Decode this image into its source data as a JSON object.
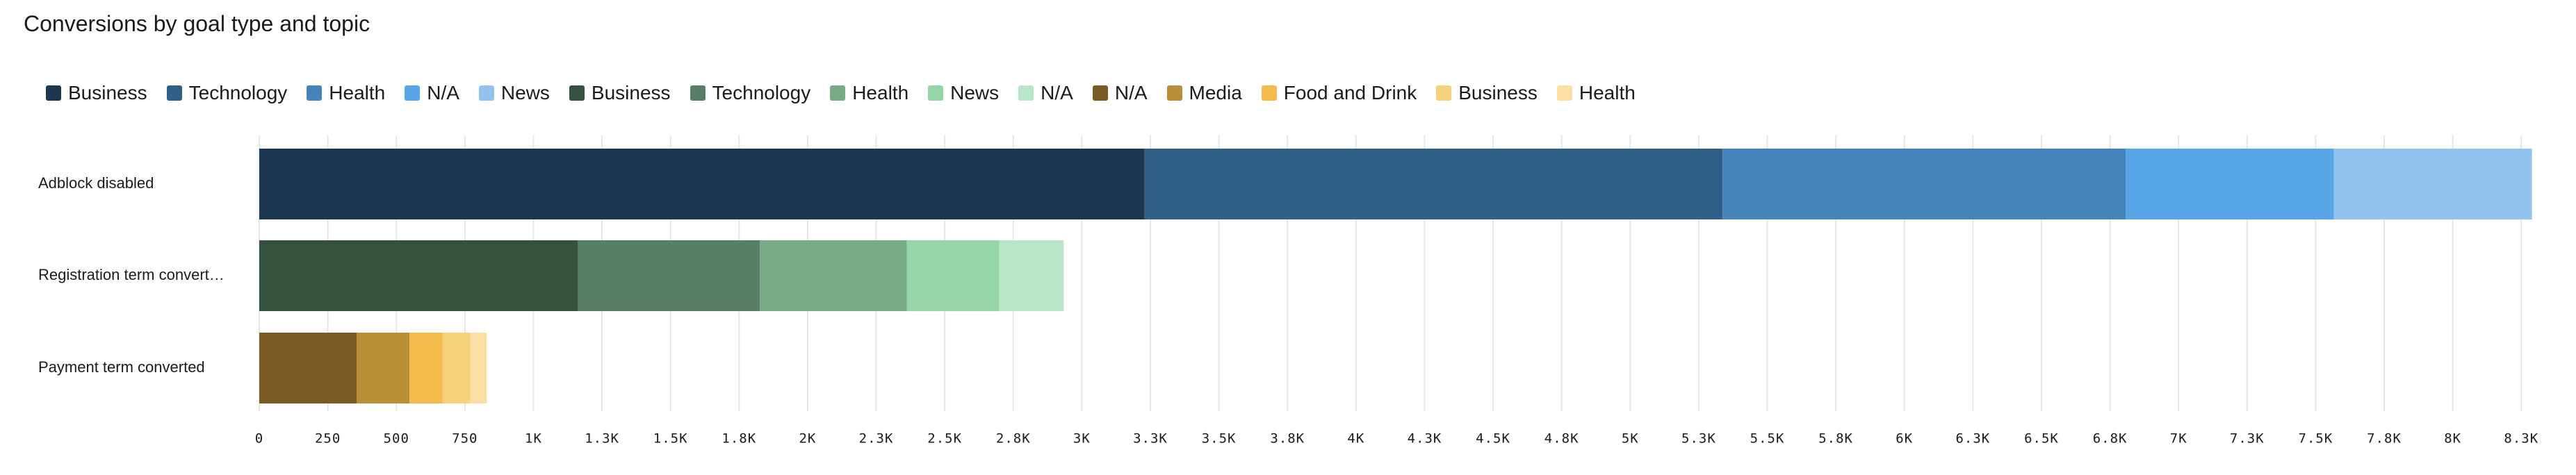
{
  "chart_data": {
    "type": "stacked-bar-horizontal",
    "title": "Conversions by goal type and topic",
    "categories": [
      "Adblock disabled",
      "Registration term convert…",
      "Payment term converted"
    ],
    "series": [
      {
        "name": "Business",
        "color": "#1d3750",
        "values": [
          3229,
          null,
          null
        ]
      },
      {
        "name": "Technology",
        "color": "#305f87",
        "values": [
          2108,
          null,
          null
        ]
      },
      {
        "name": "Health",
        "color": "#4683bb",
        "values": [
          1470,
          null,
          null
        ]
      },
      {
        "name": "N/A",
        "color": "#58a6e8",
        "values": [
          759,
          null,
          null
        ]
      },
      {
        "name": "News",
        "color": "#92c4ef",
        "values": [
          723,
          null,
          null
        ]
      },
      {
        "name": "Business",
        "color": "#355241",
        "values": [
          null,
          1163,
          null
        ]
      },
      {
        "name": "Technology",
        "color": "#577f65",
        "values": [
          null,
          663,
          null
        ]
      },
      {
        "name": "Health",
        "color": "#78aa86",
        "values": [
          null,
          536,
          null
        ]
      },
      {
        "name": "News",
        "color": "#96d5a8",
        "values": [
          null,
          337,
          null
        ]
      },
      {
        "name": "N/A",
        "color": "#b8e6c8",
        "values": [
          null,
          235,
          null
        ]
      },
      {
        "name": "N/A",
        "color": "#7a5b23",
        "values": [
          null,
          null,
          355
        ]
      },
      {
        "name": "Media",
        "color": "#b78f35",
        "values": [
          null,
          null,
          193
        ]
      },
      {
        "name": "Food and Drink",
        "color": "#f4bb4a",
        "values": [
          null,
          null,
          120
        ]
      },
      {
        "name": "Business",
        "color": "#f6d27d",
        "values": [
          null,
          null,
          102
        ]
      },
      {
        "name": "Health",
        "color": "#fadea3",
        "values": [
          null,
          null,
          60
        ]
      }
    ],
    "xlim": [
      0,
      8300
    ],
    "xticks": [
      0,
      250,
      500,
      750,
      {
        "value": 1000,
        "label": "1K"
      },
      {
        "value": 1250,
        "label": "1.3K"
      },
      {
        "value": 1500,
        "label": "1.5K"
      },
      {
        "value": 1750,
        "label": "1.8K"
      },
      {
        "value": 2000,
        "label": "2K"
      },
      {
        "value": 2250,
        "label": "2.3K"
      },
      {
        "value": 2500,
        "label": "2.5K"
      },
      {
        "value": 2750,
        "label": "2.8K"
      },
      {
        "value": 3000,
        "label": "3K"
      },
      {
        "value": 3250,
        "label": "3.3K"
      },
      {
        "value": 3500,
        "label": "3.5K"
      },
      {
        "value": 3750,
        "label": "3.8K"
      },
      {
        "value": 4000,
        "label": "4K"
      },
      {
        "value": 4250,
        "label": "4.3K"
      },
      {
        "value": 4500,
        "label": "4.5K"
      },
      {
        "value": 4750,
        "label": "4.8K"
      },
      {
        "value": 5000,
        "label": "5K"
      },
      {
        "value": 5250,
        "label": "5.3K"
      },
      {
        "value": 5500,
        "label": "5.5K"
      },
      {
        "value": 5750,
        "label": "5.8K"
      },
      {
        "value": 6000,
        "label": "6K"
      },
      {
        "value": 6250,
        "label": "6.3K"
      },
      {
        "value": 6500,
        "label": "6.5K"
      },
      {
        "value": 6750,
        "label": "6.8K"
      },
      {
        "value": 7000,
        "label": "7K"
      },
      {
        "value": 7250,
        "label": "7.3K"
      },
      {
        "value": 7500,
        "label": "7.5K"
      },
      {
        "value": 7750,
        "label": "7.8K"
      },
      {
        "value": 8000,
        "label": "8K"
      },
      {
        "value": 8250,
        "label": "8.3K"
      }
    ],
    "grid": true
  }
}
